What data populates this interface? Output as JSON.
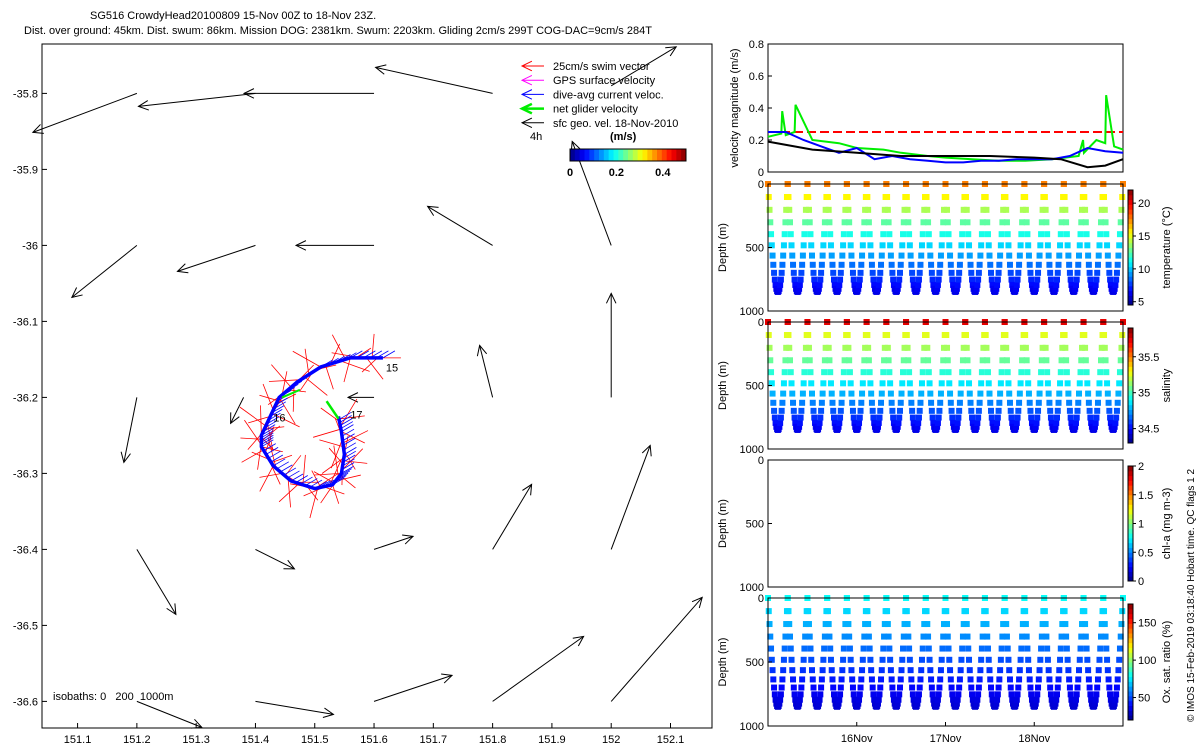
{
  "header": {
    "line1": "SG516 CrowdyHead20100809 15-Nov 00Z to 18-Nov 23Z.",
    "line2": "Dist. over ground: 45km. Dist. swum: 86km. Mission DOG: 2381km. Swum: 2203km. Gliding 2cm/s 299T COG-DAC=9cm/s 284T"
  },
  "watermark": "© IMOS 15-Feb-2019 03:18:40 Hobart time. QC flags 1  2",
  "colors": {
    "swim": "#ff0000",
    "gps": "#ff00ff",
    "dac": "#0000ff",
    "net": "#00ee00",
    "geo": "#000000",
    "axis": "#000000"
  },
  "map": {
    "legend": [
      {
        "label": "25cm/s swim vector",
        "color": "#ff0000"
      },
      {
        "label": "GPS surface velocity",
        "color": "#ff00ff"
      },
      {
        "label": "dive-avg current veloc.",
        "color": "#0000ff"
      },
      {
        "label": "net glider velocity",
        "color": "#00ee00"
      },
      {
        "label": "sfc geo. vel. 18-Nov-2010",
        "color": "#000000"
      }
    ],
    "time_label": "4h",
    "colorbar_label": "(m/s)",
    "colorbar_ticks": [
      "0",
      "0.2",
      "0.4"
    ],
    "isobaths": "isobaths: 0   200  1000m",
    "day_labels": [
      {
        "text": "15",
        "lon": 151.62,
        "lat": -36.166
      },
      {
        "text": "16",
        "lon": 151.43,
        "lat": -36.232
      },
      {
        "text": "17",
        "lon": 151.56,
        "lat": -36.228
      }
    ]
  },
  "chart_data": [
    {
      "type": "scatter",
      "name": "map",
      "xlim": [
        151.04,
        152.17
      ],
      "ylim": [
        -36.635,
        -35.735
      ],
      "xticks": [
        "151.1",
        "151.2",
        "151.3",
        "151.4",
        "151.5",
        "151.6",
        "151.7",
        "151.8",
        "151.9",
        "152",
        "152.1"
      ],
      "yticks": [
        "-35.8",
        "-35.9",
        "-36",
        "-36.1",
        "-36.2",
        "-36.3",
        "-36.4",
        "-36.5",
        "-36.6"
      ],
      "track": [
        [
          151.615,
          -36.148
        ],
        [
          151.56,
          -36.148
        ],
        [
          151.51,
          -36.16
        ],
        [
          151.47,
          -36.18
        ],
        [
          151.44,
          -36.2
        ],
        [
          151.425,
          -36.225
        ],
        [
          151.41,
          -36.25
        ],
        [
          151.41,
          -36.265
        ],
        [
          151.43,
          -36.29
        ],
        [
          151.46,
          -36.31
        ],
        [
          151.5,
          -36.32
        ],
        [
          151.53,
          -36.315
        ],
        [
          151.545,
          -36.3
        ],
        [
          151.55,
          -36.275
        ],
        [
          151.545,
          -36.245
        ],
        [
          151.54,
          -36.225
        ]
      ],
      "geo_vectors": [
        [
          151.2,
          -35.8,
          -0.08,
          -0.03
        ],
        [
          151.4,
          -35.8,
          -0.09,
          -0.01
        ],
        [
          151.6,
          -35.8,
          -0.1,
          0.0
        ],
        [
          151.8,
          -35.8,
          -0.09,
          0.02
        ],
        [
          152.0,
          -35.79,
          0.05,
          0.03
        ],
        [
          151.2,
          -36.0,
          -0.05,
          -0.04
        ],
        [
          151.4,
          -36.0,
          -0.06,
          -0.02
        ],
        [
          151.6,
          -36.0,
          -0.06,
          0.0
        ],
        [
          151.8,
          -36.0,
          -0.05,
          0.03
        ],
        [
          152.0,
          -36.0,
          -0.03,
          0.08
        ],
        [
          151.2,
          -36.2,
          -0.01,
          -0.05
        ],
        [
          151.38,
          -36.2,
          -0.01,
          -0.02
        ],
        [
          151.6,
          -36.2,
          -0.02,
          0.0
        ],
        [
          151.8,
          -36.2,
          -0.01,
          0.04
        ],
        [
          152.0,
          -36.2,
          0.0,
          0.08
        ],
        [
          151.2,
          -36.4,
          0.03,
          -0.05
        ],
        [
          151.4,
          -36.4,
          0.03,
          -0.015
        ],
        [
          151.6,
          -36.4,
          0.03,
          0.01
        ],
        [
          151.8,
          -36.4,
          0.03,
          0.05
        ],
        [
          152.0,
          -36.4,
          0.03,
          0.08
        ],
        [
          151.2,
          -36.6,
          0.05,
          -0.02
        ],
        [
          151.4,
          -36.6,
          0.06,
          -0.01
        ],
        [
          151.6,
          -36.6,
          0.06,
          0.02
        ],
        [
          151.8,
          -36.6,
          0.07,
          0.05
        ],
        [
          152.0,
          -36.6,
          0.07,
          0.08
        ]
      ]
    },
    {
      "type": "line",
      "name": "velocity",
      "ylabel": "velocity magnitude (m/s)",
      "xlim": [
        15.0,
        19.0
      ],
      "ylim": [
        0,
        0.8
      ],
      "yticks": [
        "0",
        "0.2",
        "0.4",
        "0.6",
        "0.8"
      ],
      "series": [
        {
          "color": "#ff0000",
          "dash": true,
          "x": [
            15.0,
            19.0
          ],
          "y": [
            0.25,
            0.25
          ]
        },
        {
          "color": "#00ee00",
          "x": [
            15.0,
            15.15,
            15.16,
            15.2,
            15.3,
            15.31,
            15.5,
            15.8,
            16.0,
            16.3,
            16.5,
            16.8,
            17.0,
            17.3,
            17.6,
            17.9,
            18.2,
            18.5,
            18.55,
            18.56,
            18.7,
            18.8,
            18.81,
            18.9,
            19.0
          ],
          "y": [
            0.22,
            0.24,
            0.38,
            0.23,
            0.25,
            0.42,
            0.2,
            0.18,
            0.15,
            0.14,
            0.12,
            0.1,
            0.09,
            0.08,
            0.07,
            0.07,
            0.08,
            0.1,
            0.2,
            0.12,
            0.2,
            0.18,
            0.48,
            0.16,
            0.14
          ]
        },
        {
          "color": "#0000ff",
          "x": [
            15.0,
            15.2,
            15.4,
            15.6,
            15.8,
            16.0,
            16.2,
            16.4,
            16.6,
            16.8,
            17.0,
            17.2,
            17.4,
            17.6,
            17.8,
            18.0,
            18.2,
            18.4,
            18.6,
            18.8,
            19.0
          ],
          "y": [
            0.25,
            0.25,
            0.2,
            0.16,
            0.12,
            0.15,
            0.08,
            0.1,
            0.08,
            0.07,
            0.06,
            0.06,
            0.07,
            0.07,
            0.08,
            0.08,
            0.08,
            0.1,
            0.15,
            0.13,
            0.12
          ]
        },
        {
          "color": "#000000",
          "x": [
            15.0,
            15.5,
            16.0,
            16.5,
            17.0,
            17.5,
            18.0,
            18.3,
            18.6,
            18.8,
            19.0
          ],
          "y": [
            0.19,
            0.14,
            0.12,
            0.1,
            0.1,
            0.1,
            0.09,
            0.08,
            0.03,
            0.04,
            0.08
          ]
        }
      ]
    },
    {
      "type": "scatter",
      "name": "temperature",
      "ylabel": "Depth (m)",
      "cbar_label": "temperature (°C)",
      "xlim": [
        15.0,
        19.0
      ],
      "ylim": [
        0,
        1000
      ],
      "yticks": [
        "0",
        "500",
        "1000"
      ],
      "cbar_range": [
        4.5,
        22
      ],
      "cbar_ticks": [
        "5",
        "10",
        "15",
        "20"
      ],
      "dives": 18,
      "max_depth": 850
    },
    {
      "type": "scatter",
      "name": "salinity",
      "ylabel": "Depth (m)",
      "cbar_label": "salinity",
      "xlim": [
        15.0,
        19.0
      ],
      "ylim": [
        0,
        1000
      ],
      "yticks": [
        "0",
        "500",
        "1000"
      ],
      "cbar_range": [
        34.3,
        35.9
      ],
      "cbar_ticks": [
        "34.5",
        "35",
        "35.5"
      ],
      "dives": 18,
      "max_depth": 850
    },
    {
      "type": "scatter",
      "name": "chla",
      "ylabel": "Depth (m)",
      "cbar_label": "chl-a (mg m-3)",
      "xlim": [
        15.0,
        19.0
      ],
      "ylim": [
        0,
        1000
      ],
      "yticks": [
        "0",
        "500",
        "1000"
      ],
      "cbar_range": [
        0,
        2
      ],
      "cbar_ticks": [
        "0",
        "0.5",
        "1",
        "1.5",
        "2"
      ],
      "dives": 0
    },
    {
      "type": "scatter",
      "name": "oxygen",
      "ylabel": "Depth (m)",
      "cbar_label": "Ox. sat. ratio (%)",
      "xlabel_ticks": [
        "16Nov",
        "17Nov",
        "18Nov"
      ],
      "xlim": [
        15.0,
        19.0
      ],
      "ylim": [
        0,
        1000
      ],
      "yticks": [
        "0",
        "500",
        "1000"
      ],
      "cbar_range": [
        20,
        175
      ],
      "cbar_ticks": [
        "50",
        "100",
        "150"
      ],
      "dives": 18,
      "max_depth": 850
    }
  ]
}
